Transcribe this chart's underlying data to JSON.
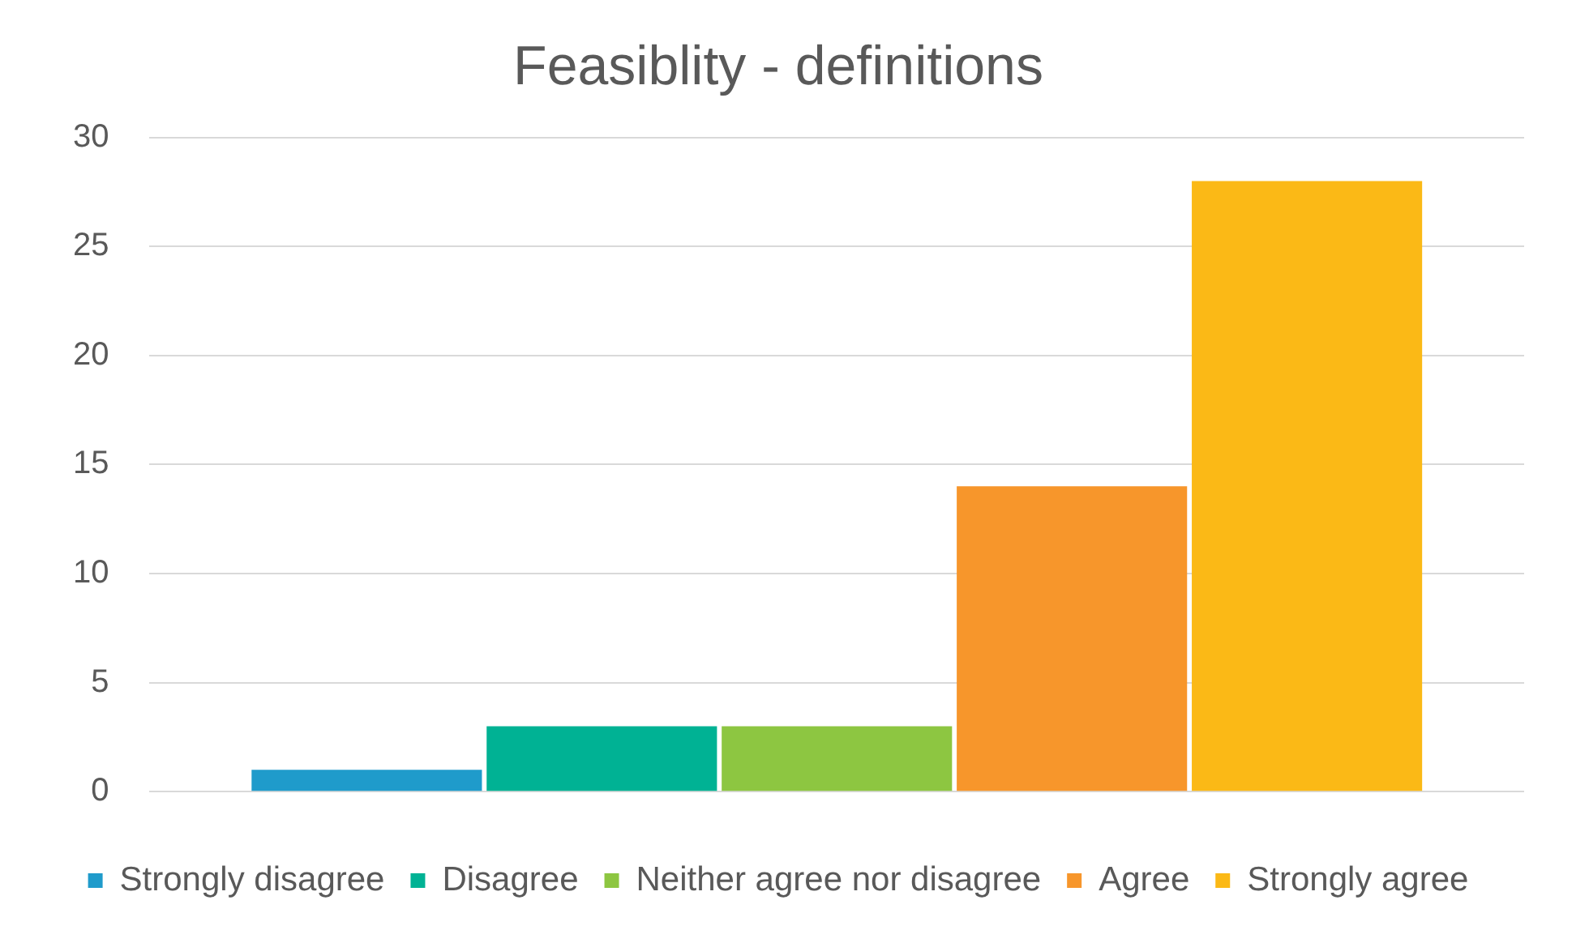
{
  "chart_data": {
    "type": "bar",
    "title": "Feasiblity - definitions",
    "categories": [
      null
    ],
    "series": [
      {
        "name": "Strongly disagree",
        "color": "#1f9bcb",
        "values": [
          1
        ]
      },
      {
        "name": "Disagree",
        "color": "#00b294",
        "values": [
          3
        ]
      },
      {
        "name": "Neither agree nor disagree",
        "color": "#8dc641",
        "values": [
          3
        ]
      },
      {
        "name": "Agree",
        "color": "#f7962b",
        "values": [
          14
        ]
      },
      {
        "name": "Strongly agree",
        "color": "#fbb916",
        "values": [
          28
        ]
      }
    ],
    "ylim": [
      0,
      30
    ],
    "yticks": [
      0,
      5,
      10,
      15,
      20,
      25,
      30
    ],
    "grid": "y",
    "legend": "bottom"
  }
}
